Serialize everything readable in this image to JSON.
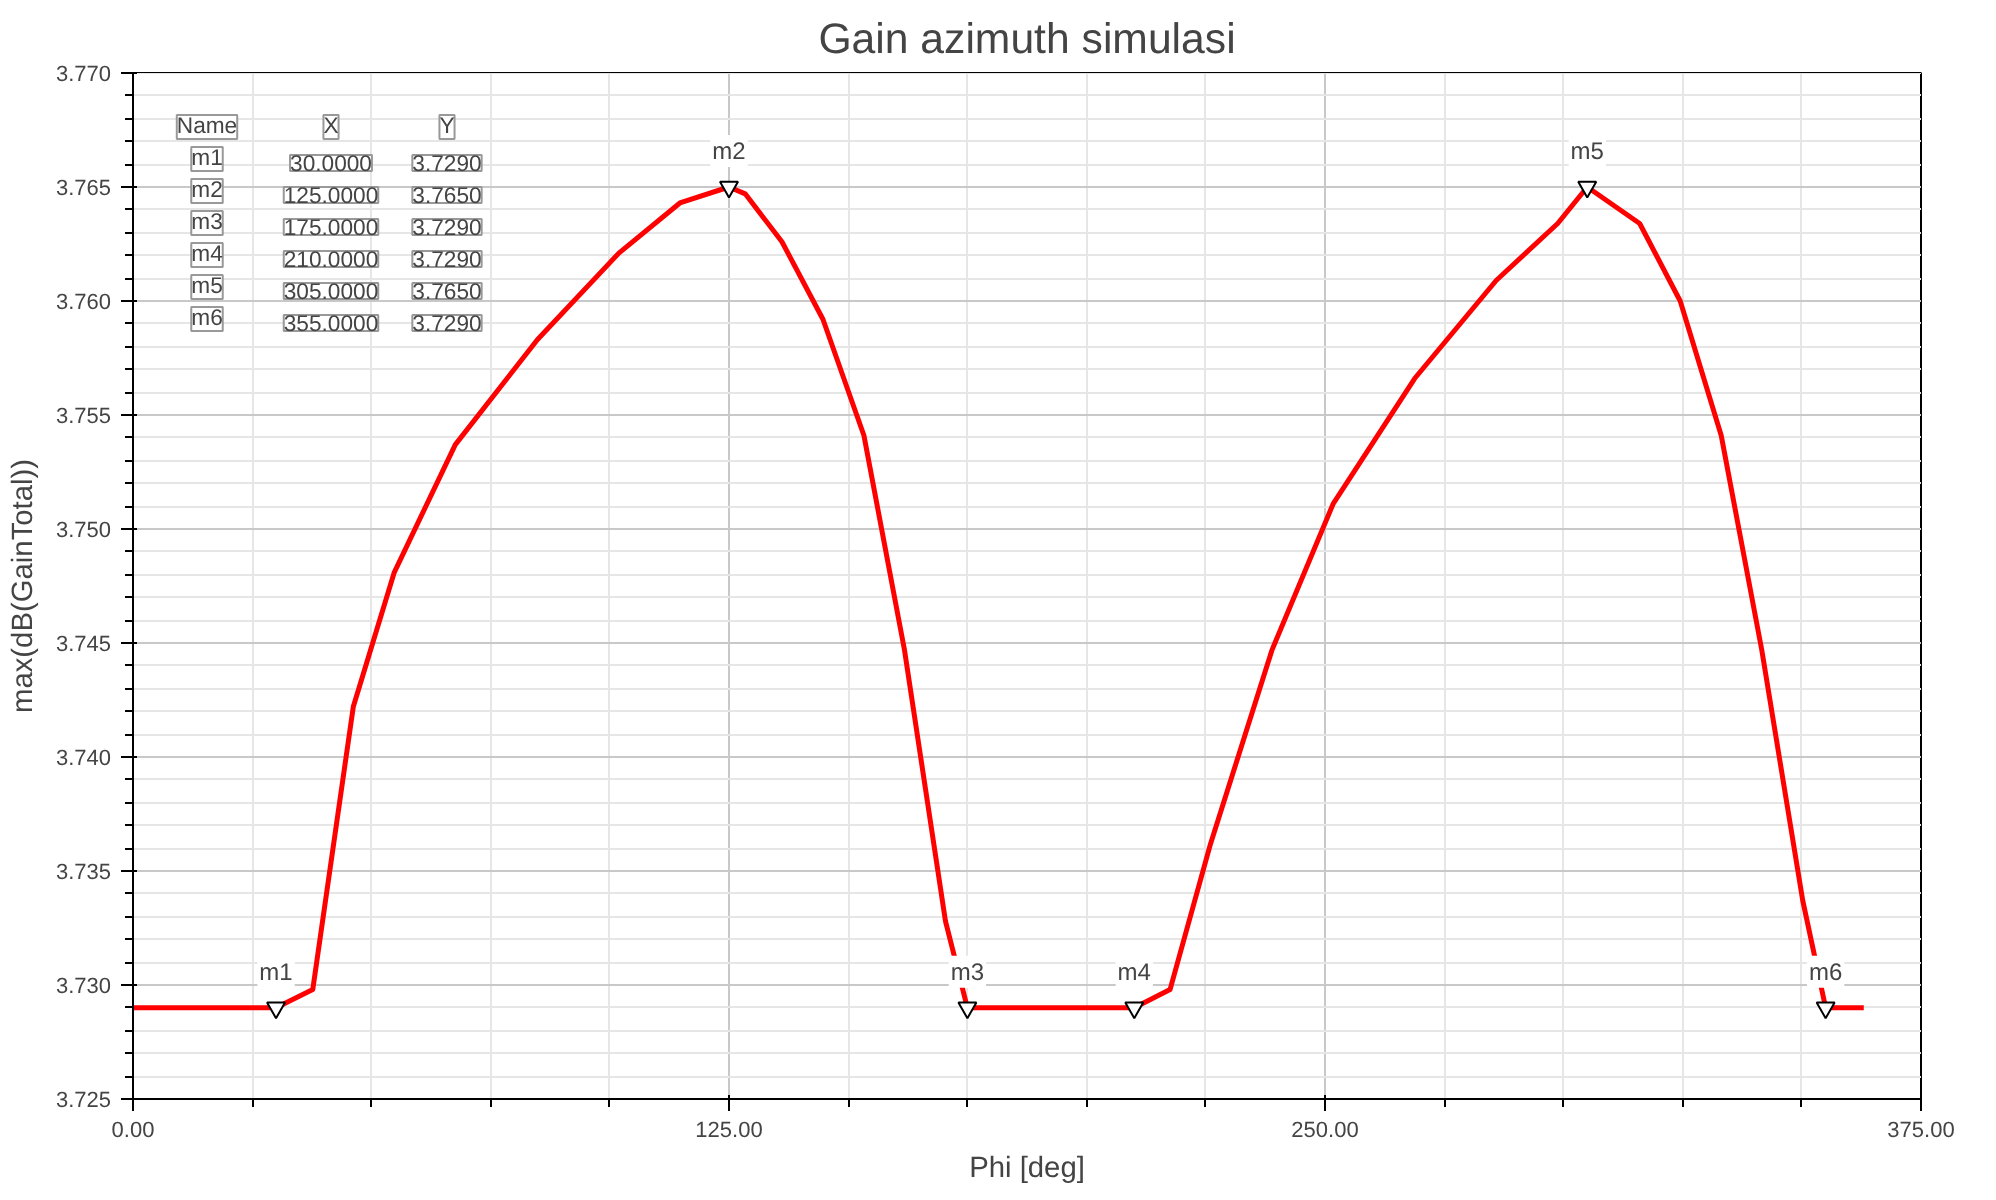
{
  "chart_data": {
    "type": "line",
    "title": "Gain azimuth simulasi",
    "xlabel": "Phi [deg]",
    "ylabel": "max(dB(GainTotal))",
    "series": [
      {
        "color": "#ff0000",
        "x": [
          0,
          30,
          37.7,
          46.2,
          54.8,
          67.6,
          84.8,
          101.9,
          114.7,
          125,
          128.4,
          136.1,
          144.7,
          153.3,
          161.8,
          170.4,
          175,
          210,
          217.5,
          226,
          238.9,
          251.7,
          268.8,
          285.9,
          298.8,
          305,
          316,
          324.5,
          333.1,
          341.6,
          350.2,
          355,
          363
        ],
        "values": [
          3.729,
          3.729,
          3.7298,
          3.7422,
          3.7481,
          3.7537,
          3.7583,
          3.7621,
          3.7643,
          3.765,
          3.7647,
          3.7626,
          3.7592,
          3.7541,
          3.7447,
          3.7328,
          3.729,
          3.729,
          3.7298,
          3.7362,
          3.7447,
          3.7511,
          3.7566,
          3.7609,
          3.7634,
          3.765,
          3.7634,
          3.76,
          3.7541,
          3.7447,
          3.7337,
          3.729,
          3.729
        ]
      }
    ],
    "xlim": [
      0,
      375
    ],
    "ylim": [
      3.725,
      3.77
    ],
    "xticks": [
      {
        "value": 0,
        "label": "0.00"
      },
      {
        "value": 125,
        "label": "125.00"
      },
      {
        "value": 250,
        "label": "250.00"
      },
      {
        "value": 375,
        "label": "375.00"
      }
    ],
    "yticks": [
      {
        "value": 3.725,
        "label": "3.725"
      },
      {
        "value": 3.73,
        "label": "3.730"
      },
      {
        "value": 3.735,
        "label": "3.735"
      },
      {
        "value": 3.74,
        "label": "3.740"
      },
      {
        "value": 3.745,
        "label": "3.745"
      },
      {
        "value": 3.75,
        "label": "3.750"
      },
      {
        "value": 3.755,
        "label": "3.755"
      },
      {
        "value": 3.76,
        "label": "3.760"
      },
      {
        "value": 3.765,
        "label": "3.765"
      },
      {
        "value": 3.77,
        "label": "3.770"
      }
    ],
    "grid": true,
    "marker": "none",
    "line_style": "solid",
    "annotations": [
      {
        "text": "m1",
        "x": 30,
        "y": 3.729
      },
      {
        "text": "m2",
        "x": 125,
        "y": 3.765
      },
      {
        "text": "m3",
        "x": 175,
        "y": 3.729
      },
      {
        "text": "m4",
        "x": 210,
        "y": 3.729
      },
      {
        "text": "m5",
        "x": 305,
        "y": 3.765
      },
      {
        "text": "m6",
        "x": 355,
        "y": 3.729
      },
      "Name X Y",
      "m1 30.0000 3.7290",
      "m2 125.0000 3.7650",
      "m3 175.0000 3.7290",
      "m4 210.0000 3.7290",
      "m5 305.0000 3.7650",
      "m6 355.0000 3.7290"
    ]
  }
}
